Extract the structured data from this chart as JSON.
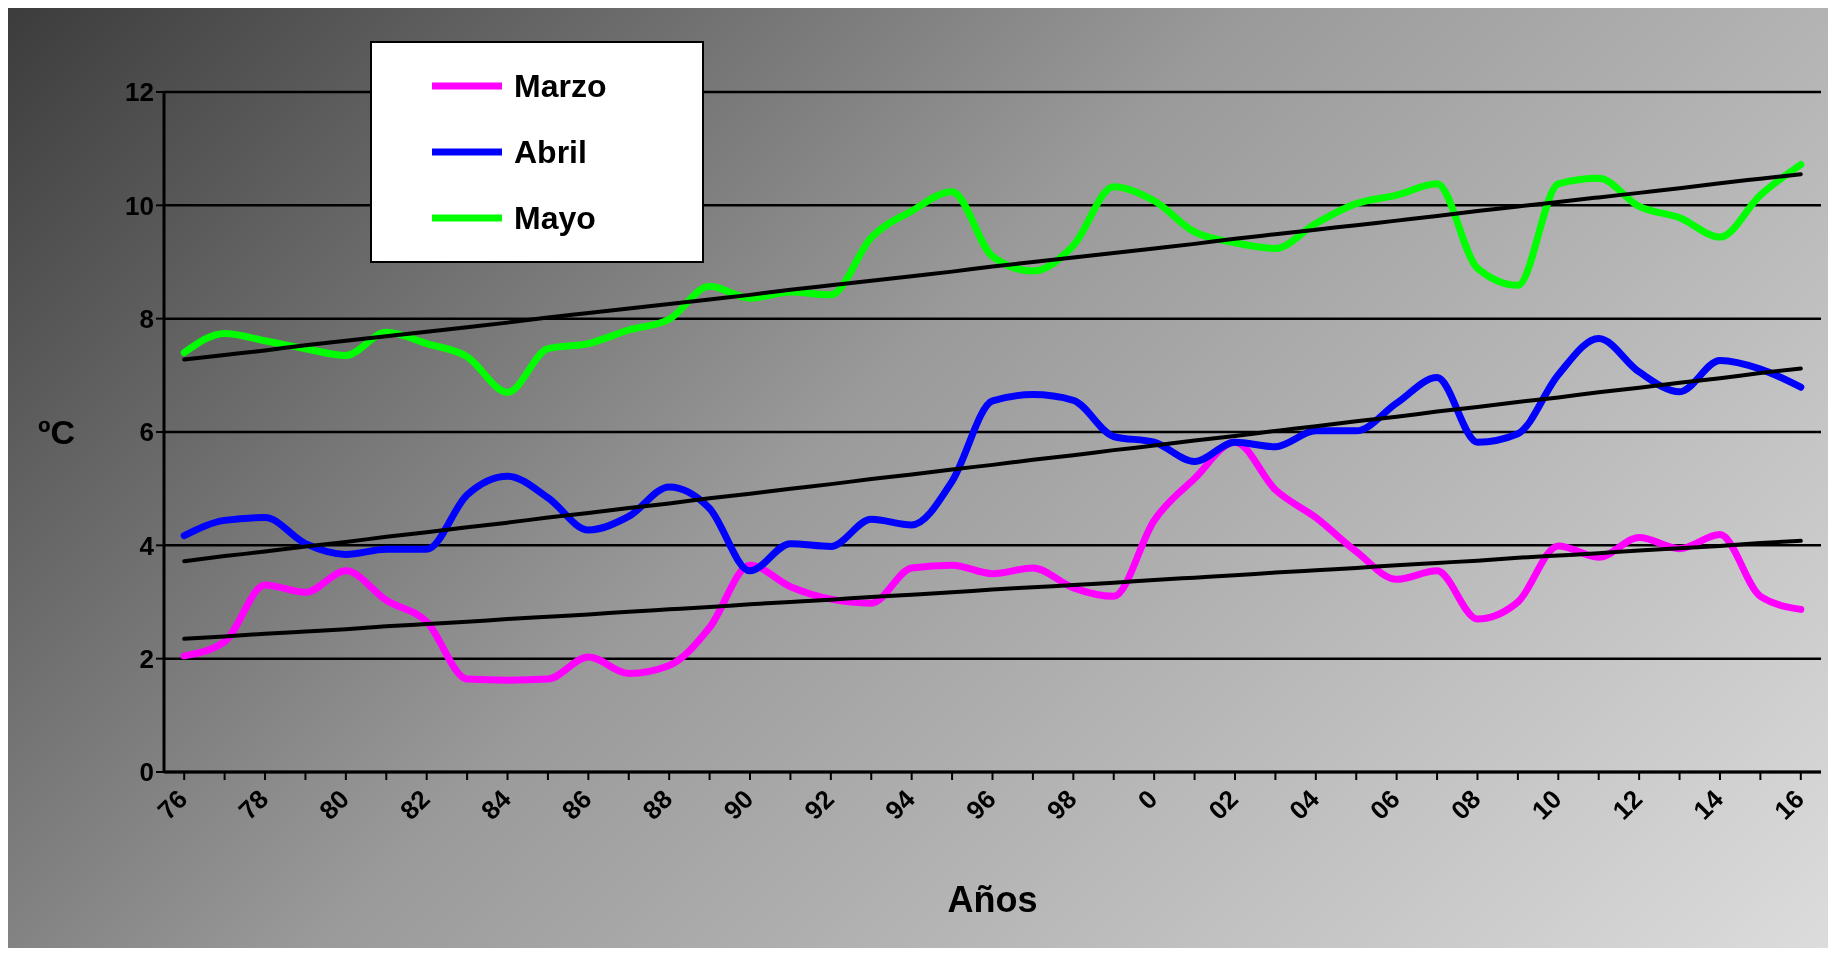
{
  "chart_data": {
    "type": "line",
    "xlabel": "Años",
    "ylabel": "ºC",
    "categories": [
      "76",
      null,
      "78",
      null,
      "80",
      null,
      "82",
      null,
      "84",
      null,
      "86",
      null,
      "88",
      null,
      "90",
      null,
      "92",
      null,
      "94",
      null,
      "96",
      null,
      "98",
      null,
      "0",
      null,
      "02",
      null,
      "04",
      null,
      "06",
      null,
      "08",
      null,
      "10",
      null,
      "12",
      null,
      "14",
      null,
      "16"
    ],
    "ylim": [
      0,
      12
    ],
    "yticks": [
      0,
      2,
      4,
      6,
      8,
      10,
      12
    ],
    "grid": "y",
    "legend": "top left",
    "marker": "none",
    "line_style": "solid",
    "series": [
      {
        "name": "Marzo",
        "color": "#ff00ff",
        "values": [
          2.05,
          2.3,
          3.3,
          3.17,
          3.55,
          3.03,
          2.65,
          1.64,
          1.62,
          1.64,
          2.03,
          1.74,
          1.88,
          2.55,
          3.65,
          3.27,
          3.05,
          2.98,
          3.6,
          3.65,
          3.5,
          3.6,
          3.25,
          3.1,
          4.44,
          5.18,
          5.82,
          4.98,
          4.49,
          3.89,
          3.4,
          3.55,
          2.7,
          3.0,
          3.99,
          3.79,
          4.14,
          3.94,
          4.19,
          3.1,
          2.87
        ]
      },
      {
        "name": "Abril",
        "color": "#0000ff",
        "values": [
          4.17,
          4.44,
          4.49,
          4.03,
          3.84,
          3.93,
          3.93,
          4.89,
          5.22,
          4.84,
          4.27,
          4.51,
          5.03,
          4.65,
          3.55,
          4.03,
          3.98,
          4.46,
          4.36,
          5.13,
          6.55,
          6.66,
          6.56,
          5.92,
          5.82,
          5.48,
          5.82,
          5.74,
          6.02,
          6.02,
          6.51,
          6.96,
          5.82,
          5.97,
          7.01,
          7.65,
          7.06,
          6.71,
          7.26,
          7.11,
          6.79
        ]
      },
      {
        "name": "Mayo",
        "color": "#00ff00",
        "values": [
          7.4,
          7.74,
          7.61,
          7.47,
          7.35,
          7.76,
          7.56,
          7.33,
          6.7,
          7.47,
          7.56,
          7.8,
          7.99,
          8.57,
          8.36,
          8.47,
          8.42,
          9.43,
          9.9,
          10.24,
          9.1,
          8.84,
          9.29,
          10.33,
          10.08,
          9.53,
          9.34,
          9.24,
          9.68,
          10.03,
          10.18,
          10.38,
          8.89,
          8.59,
          10.38,
          10.48,
          9.98,
          9.78,
          9.44,
          10.18,
          10.72
        ]
      },
      {
        "color": "#000000",
        "values": [
          2.35,
          2.39,
          2.44,
          2.48,
          2.52,
          2.57,
          2.61,
          2.65,
          2.7,
          2.74,
          2.78,
          2.83,
          2.87,
          2.91,
          2.96,
          3.0,
          3.04,
          3.09,
          3.13,
          3.17,
          3.22,
          3.26,
          3.3,
          3.34,
          3.39,
          3.43,
          3.47,
          3.52,
          3.56,
          3.6,
          3.65,
          3.69,
          3.73,
          3.78,
          3.82,
          3.86,
          3.91,
          3.95,
          3.99,
          4.04,
          4.08
        ]
      },
      {
        "color": "#000000",
        "values": [
          3.72,
          3.81,
          3.89,
          3.98,
          4.06,
          4.15,
          4.23,
          4.32,
          4.4,
          4.49,
          4.57,
          4.66,
          4.74,
          4.83,
          4.91,
          5.0,
          5.08,
          5.17,
          5.25,
          5.34,
          5.42,
          5.51,
          5.59,
          5.68,
          5.76,
          5.85,
          5.93,
          6.02,
          6.1,
          6.19,
          6.27,
          6.36,
          6.44,
          6.53,
          6.61,
          6.7,
          6.78,
          6.87,
          6.95,
          7.04,
          7.12
        ]
      },
      {
        "color": "#000000",
        "values": [
          7.28,
          7.36,
          7.44,
          7.53,
          7.61,
          7.69,
          7.77,
          7.85,
          7.93,
          8.02,
          8.1,
          8.18,
          8.26,
          8.34,
          8.42,
          8.51,
          8.59,
          8.67,
          8.75,
          8.83,
          8.92,
          9.0,
          9.08,
          9.16,
          9.24,
          9.32,
          9.41,
          9.49,
          9.57,
          9.65,
          9.73,
          9.81,
          9.9,
          9.98,
          10.06,
          10.14,
          10.22,
          10.3,
          10.39,
          10.47,
          10.55
        ]
      }
    ]
  }
}
